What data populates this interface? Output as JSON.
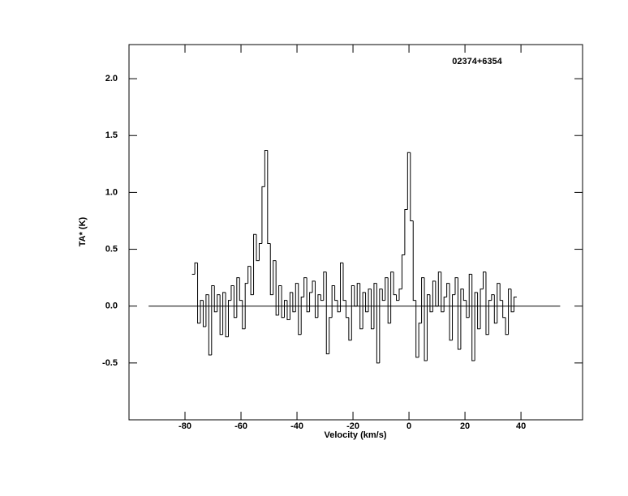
{
  "chart_data": {
    "type": "step",
    "title": "02374+6354",
    "xlabel": "Velocity (km/s)",
    "ylabel": "TA* (K)",
    "xlim": [
      -100,
      62
    ],
    "ylim": [
      -1.0,
      2.3
    ],
    "xticks": [
      -80,
      -60,
      -40,
      -20,
      0,
      20,
      40
    ],
    "yticks": [
      -0.5,
      {
        "value": 0,
        "label": "0.0"
      },
      0.5,
      {
        "value": 1,
        "label": "1.0"
      },
      1.5,
      {
        "value": 2,
        "label": "2.0"
      }
    ],
    "baseline_x": [
      -93,
      54
    ],
    "baseline_y": 0,
    "color": "#000000",
    "x": [
      -77,
      -76,
      -75,
      -74,
      -73,
      -72,
      -71,
      -70,
      -69,
      -68,
      -67,
      -66,
      -65,
      -64,
      -63,
      -62,
      -61,
      -60,
      -59,
      -58,
      -57,
      -56,
      -55,
      -54,
      -53,
      -52,
      -51,
      -50,
      -49,
      -48,
      -47,
      -46,
      -45,
      -44,
      -43,
      -42,
      -41,
      -40,
      -39,
      -38,
      -37,
      -36,
      -35,
      -34,
      -33,
      -32,
      -31,
      -30,
      -29,
      -28,
      -27,
      -26,
      -25,
      -24,
      -23,
      -22,
      -21,
      -20,
      -19,
      -18,
      -17,
      -16,
      -15,
      -14,
      -13,
      -12,
      -11,
      -10,
      -9,
      -8,
      -7,
      -6,
      -5,
      -4,
      -3,
      -2,
      -1,
      0,
      1,
      2,
      3,
      4,
      5,
      6,
      7,
      8,
      9,
      10,
      11,
      12,
      13,
      14,
      15,
      16,
      17,
      18,
      19,
      20,
      21,
      22,
      23,
      24,
      25,
      26,
      27,
      28,
      29,
      30,
      31,
      32,
      33,
      34,
      35,
      36,
      37,
      38
    ],
    "values": [
      0.28,
      0.38,
      -0.15,
      0.05,
      -0.18,
      0.1,
      -0.43,
      0.18,
      -0.05,
      0.1,
      -0.25,
      0.12,
      -0.27,
      0.05,
      0.18,
      -0.1,
      0.25,
      0.05,
      -0.2,
      0.2,
      0.35,
      0.1,
      0.63,
      0.4,
      0.55,
      1.05,
      1.37,
      0.55,
      0.1,
      0.4,
      -0.08,
      0.18,
      -0.1,
      0.05,
      -0.12,
      0.12,
      -0.05,
      0.2,
      -0.25,
      0.08,
      0.25,
      -0.05,
      0.12,
      0.22,
      -0.1,
      0.1,
      0.05,
      0.3,
      -0.42,
      -0.1,
      0.18,
      0.05,
      -0.05,
      0.38,
      0.05,
      -0.1,
      -0.3,
      0.18,
      0.0,
      0.2,
      -0.2,
      0.12,
      -0.05,
      0.15,
      -0.2,
      0.2,
      -0.5,
      0.15,
      0.05,
      0.25,
      -0.15,
      0.3,
      0.1,
      0.05,
      0.15,
      0.45,
      0.85,
      1.35,
      0.75,
      0.05,
      -0.45,
      -0.15,
      0.25,
      -0.48,
      0.1,
      -0.05,
      0.22,
      0.0,
      0.3,
      -0.05,
      0.08,
      0.2,
      -0.3,
      0.1,
      0.25,
      -0.38,
      0.15,
      0.05,
      -0.1,
      0.28,
      -0.48,
      0.12,
      -0.2,
      0.15,
      0.3,
      -0.25,
      0.05,
      0.1,
      -0.15,
      0.2,
      0.05,
      -0.1,
      -0.25,
      0.15,
      -0.05,
      0.08
    ]
  }
}
